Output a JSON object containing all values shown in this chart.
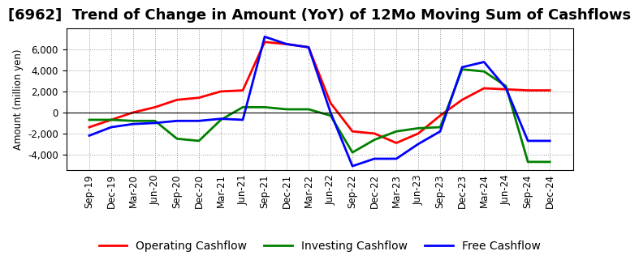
{
  "title": "[6962]  Trend of Change in Amount (YoY) of 12Mo Moving Sum of Cashflows",
  "ylabel": "Amount (million yen)",
  "x_labels": [
    "Sep-19",
    "Dec-19",
    "Mar-20",
    "Jun-20",
    "Sep-20",
    "Dec-20",
    "Mar-21",
    "Jun-21",
    "Sep-21",
    "Dec-21",
    "Mar-22",
    "Jun-22",
    "Sep-22",
    "Dec-22",
    "Mar-23",
    "Jun-23",
    "Sep-23",
    "Dec-23",
    "Mar-24",
    "Jun-24",
    "Sep-24",
    "Dec-24"
  ],
  "operating_cashflow": [
    -1400,
    -700,
    0,
    500,
    1200,
    1400,
    2000,
    2100,
    6700,
    6500,
    6200,
    900,
    -1800,
    -2000,
    -2900,
    -2000,
    -300,
    1200,
    2300,
    2200,
    2100,
    2100
  ],
  "investing_cashflow": [
    -700,
    -700,
    -800,
    -800,
    -2500,
    -2700,
    -700,
    500,
    500,
    300,
    300,
    -300,
    -3800,
    -2600,
    -1800,
    -1500,
    -1400,
    4100,
    3900,
    2500,
    -4700,
    -4700
  ],
  "free_cashflow": [
    -2200,
    -1400,
    -1100,
    -1000,
    -800,
    -800,
    -600,
    -700,
    7200,
    6500,
    6200,
    0,
    -5100,
    -4400,
    -4400,
    -3000,
    -1800,
    4300,
    4800,
    2300,
    -2700,
    -2700
  ],
  "operating_color": "#ff0000",
  "investing_color": "#008000",
  "free_color": "#0000ff",
  "background_color": "#ffffff",
  "plot_bg_color": "#ffffff",
  "grid_color": "#999999",
  "ylim": [
    -5500,
    8000
  ],
  "yticks": [
    -4000,
    -2000,
    0,
    2000,
    4000,
    6000
  ],
  "line_width": 2.0,
  "title_fontsize": 13,
  "legend_fontsize": 10,
  "tick_fontsize": 8.5
}
